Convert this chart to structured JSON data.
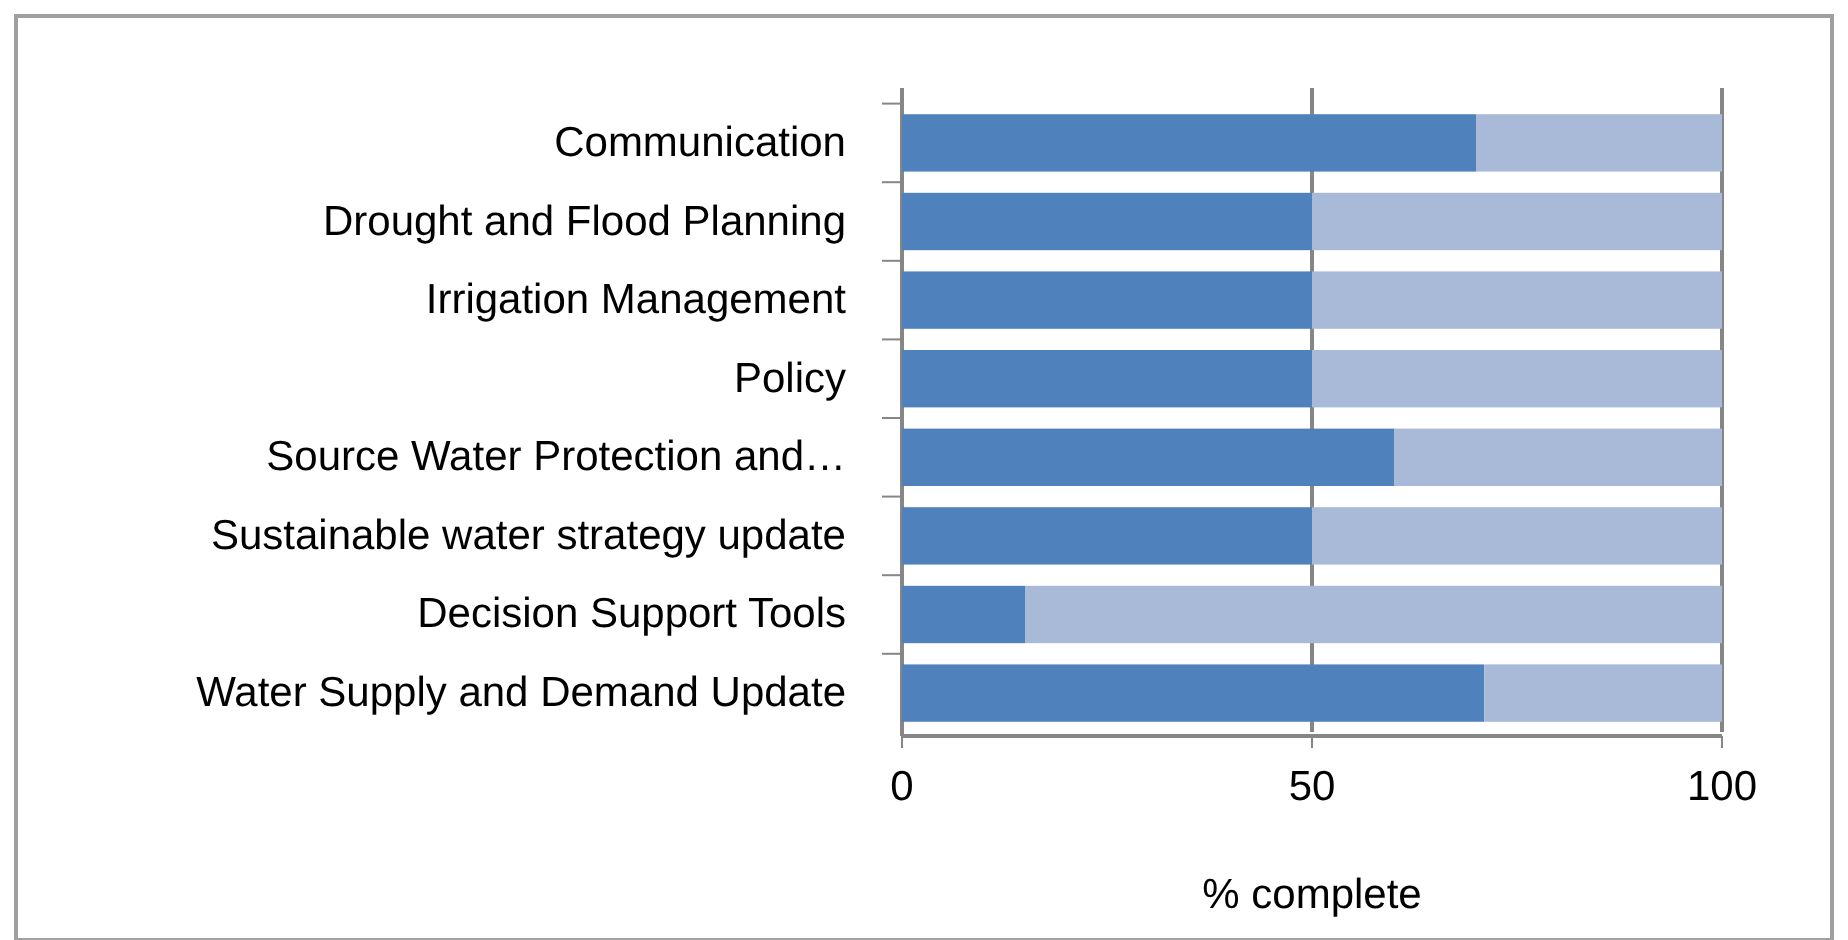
{
  "chart_data": {
    "type": "bar",
    "orientation": "horizontal",
    "stacked": true,
    "xlabel": "% complete",
    "categories": [
      "Communication",
      "Drought and Flood Planning",
      "Irrigation Management",
      "Policy",
      "Source Water Protection and…",
      "Sustainable water strategy update",
      "Decision Support Tools",
      "Water Supply and Demand Update"
    ],
    "series": [
      {
        "color": "#4f81bd",
        "values": [
          70,
          50,
          50,
          50,
          60,
          50,
          15,
          71
        ]
      },
      {
        "color": "#a9b9d8",
        "values": [
          30,
          50,
          50,
          50,
          40,
          50,
          85,
          29
        ]
      }
    ],
    "xlim": [
      0,
      100
    ],
    "xticks": [
      0,
      50,
      100
    ],
    "grid": "x"
  }
}
